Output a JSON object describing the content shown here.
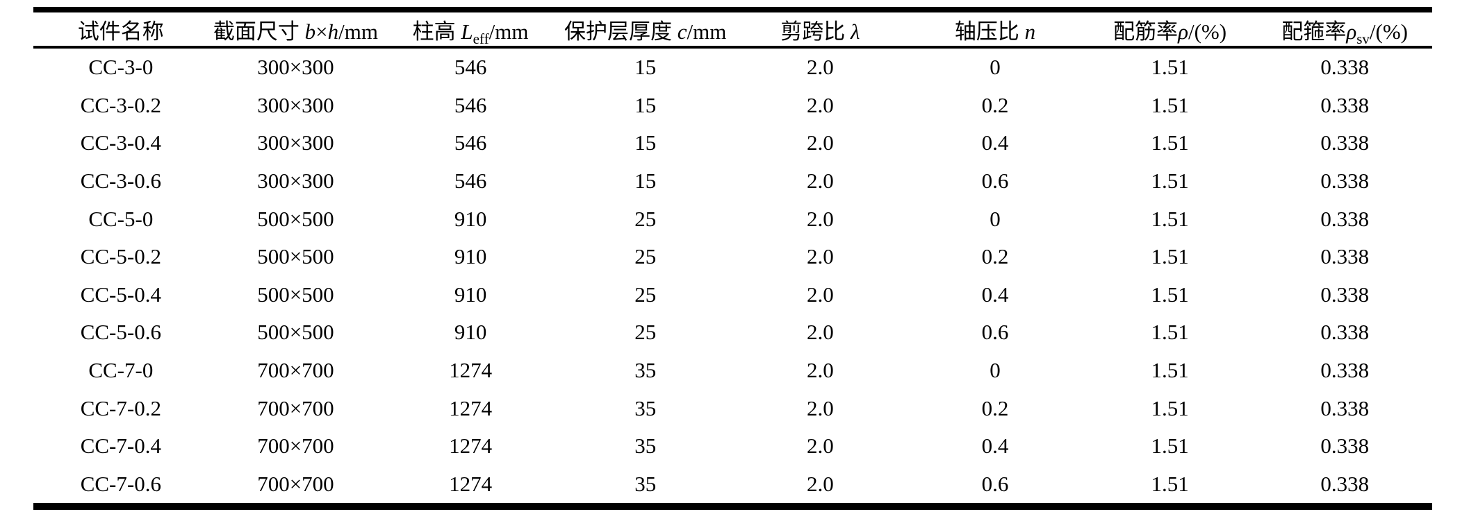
{
  "colors": {
    "background": "#ffffff",
    "text": "#000000",
    "rule": "#000000"
  },
  "table": {
    "columns": [
      {
        "name": "specimen-name",
        "parts": [
          {
            "t": "试件名称"
          }
        ]
      },
      {
        "name": "section-size",
        "parts": [
          {
            "t": "截面尺寸 "
          },
          {
            "t": "b",
            "s": "i"
          },
          {
            "t": "×"
          },
          {
            "t": "h",
            "s": "i"
          },
          {
            "t": "/mm"
          }
        ]
      },
      {
        "name": "column-height",
        "parts": [
          {
            "t": "柱高 "
          },
          {
            "t": "L",
            "s": "i"
          },
          {
            "t": "eff",
            "s": "sub"
          },
          {
            "t": "/mm"
          }
        ]
      },
      {
        "name": "cover-thickness",
        "parts": [
          {
            "t": "保护层厚度 "
          },
          {
            "t": "c",
            "s": "i"
          },
          {
            "t": "/mm"
          }
        ]
      },
      {
        "name": "shear-span-ratio",
        "parts": [
          {
            "t": "剪跨比 "
          },
          {
            "t": "λ",
            "s": "i"
          }
        ]
      },
      {
        "name": "axial-load-ratio",
        "parts": [
          {
            "t": "轴压比 "
          },
          {
            "t": "n",
            "s": "i"
          }
        ]
      },
      {
        "name": "reinforcement-ratio",
        "parts": [
          {
            "t": "配筋率"
          },
          {
            "t": "ρ",
            "s": "i"
          },
          {
            "t": "/(%)"
          }
        ]
      },
      {
        "name": "stirrup-ratio",
        "parts": [
          {
            "t": "配箍率"
          },
          {
            "t": "ρ",
            "s": "i"
          },
          {
            "t": "sv",
            "s": "sub"
          },
          {
            "t": "/(%)"
          }
        ]
      }
    ],
    "rows": [
      [
        "CC-3-0",
        "300×300",
        "546",
        "15",
        "2.0",
        "0",
        "1.51",
        "0.338"
      ],
      [
        "CC-3-0.2",
        "300×300",
        "546",
        "15",
        "2.0",
        "0.2",
        "1.51",
        "0.338"
      ],
      [
        "CC-3-0.4",
        "300×300",
        "546",
        "15",
        "2.0",
        "0.4",
        "1.51",
        "0.338"
      ],
      [
        "CC-3-0.6",
        "300×300",
        "546",
        "15",
        "2.0",
        "0.6",
        "1.51",
        "0.338"
      ],
      [
        "CC-5-0",
        "500×500",
        "910",
        "25",
        "2.0",
        "0",
        "1.51",
        "0.338"
      ],
      [
        "CC-5-0.2",
        "500×500",
        "910",
        "25",
        "2.0",
        "0.2",
        "1.51",
        "0.338"
      ],
      [
        "CC-5-0.4",
        "500×500",
        "910",
        "25",
        "2.0",
        "0.4",
        "1.51",
        "0.338"
      ],
      [
        "CC-5-0.6",
        "500×500",
        "910",
        "25",
        "2.0",
        "0.6",
        "1.51",
        "0.338"
      ],
      [
        "CC-7-0",
        "700×700",
        "1274",
        "35",
        "2.0",
        "0",
        "1.51",
        "0.338"
      ],
      [
        "CC-7-0.2",
        "700×700",
        "1274",
        "35",
        "2.0",
        "0.2",
        "1.51",
        "0.338"
      ],
      [
        "CC-7-0.4",
        "700×700",
        "1274",
        "35",
        "2.0",
        "0.4",
        "1.51",
        "0.338"
      ],
      [
        "CC-7-0.6",
        "700×700",
        "1274",
        "35",
        "2.0",
        "0.6",
        "1.51",
        "0.338"
      ]
    ]
  }
}
